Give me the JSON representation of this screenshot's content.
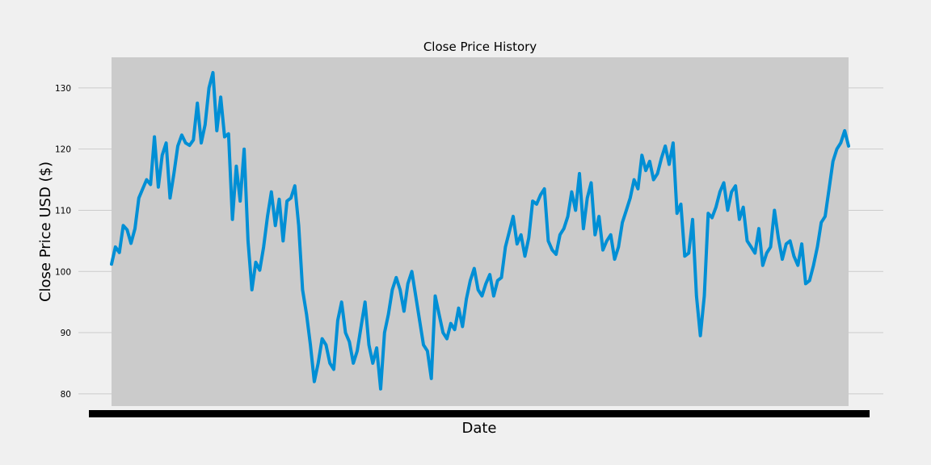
{
  "chart_data": {
    "type": "line",
    "title": "Close Price History",
    "xlabel": "Date",
    "ylabel": "Close Price USD ($)",
    "ylim": [
      78,
      135
    ],
    "yticks": [
      80,
      90,
      100,
      110,
      120,
      130
    ],
    "grid": true,
    "colors": {
      "line": "#008fd5",
      "plot_bg": "#cbcbcb",
      "figure_bg": "#f0f0f0",
      "grid": "#cbcbcb"
    },
    "series": [
      {
        "values": [
          101.2,
          104.0,
          103.1,
          107.5,
          106.8,
          104.6,
          107.0,
          112.0,
          113.5,
          115.0,
          114.2,
          122.0,
          113.8,
          119.0,
          121.0,
          112.0,
          116.0,
          120.5,
          122.3,
          121.0,
          120.6,
          121.5,
          127.5,
          121.0,
          124.0,
          130.0,
          132.5,
          123.0,
          128.5,
          122.0,
          122.5,
          108.5,
          117.2,
          111.5,
          120.0,
          105.0,
          97.0,
          101.5,
          100.2,
          104.0,
          109.0,
          113.0,
          107.5,
          111.8,
          105.0,
          111.5,
          112.0,
          114.0,
          107.5,
          97.0,
          93.0,
          88.0,
          82.0,
          85.0,
          89.0,
          88.0,
          85.0,
          84.0,
          92.0,
          95.0,
          90.0,
          88.5,
          85.0,
          87.0,
          91.0,
          95.0,
          88.0,
          85.0,
          87.5,
          80.8,
          90.0,
          93.0,
          97.0,
          99.0,
          97.0,
          93.5,
          98.0,
          100.0,
          96.0,
          92.0,
          88.0,
          87.0,
          82.5,
          96.0,
          93.0,
          90.0,
          89.0,
          91.5,
          90.5,
          94.0,
          91.0,
          95.5,
          98.5,
          100.5,
          97.0,
          96.0,
          98.0,
          99.5,
          96.0,
          98.5,
          99.0,
          104.0,
          106.5,
          109.0,
          104.5,
          106.0,
          102.5,
          105.5,
          111.5,
          111.0,
          112.5,
          113.5,
          105.0,
          103.5,
          102.8,
          106.0,
          107.0,
          109.0,
          113.0,
          110.0,
          116.0,
          107.0,
          112.0,
          114.5,
          106.0,
          109.0,
          103.5,
          105.0,
          106.0,
          102.0,
          104.0,
          108.0,
          110.0,
          112.0,
          115.0,
          113.5,
          119.0,
          116.5,
          118.0,
          115.0,
          116.0,
          118.5,
          120.5,
          117.5,
          121.0,
          109.5,
          111.0,
          102.5,
          103.0,
          108.5,
          96.0,
          89.5,
          96.0,
          109.5,
          108.8,
          110.5,
          113.0,
          114.5,
          110.0,
          113.0,
          114.0,
          108.5,
          110.5,
          105.0,
          104.0,
          103.0,
          107.0,
          101.0,
          103.0,
          104.0,
          110.0,
          105.5,
          102.0,
          104.5,
          105.0,
          102.5,
          101.0,
          104.5,
          98.0,
          98.5,
          101.0,
          104.0,
          108.0,
          109.0,
          113.5,
          118.0,
          120.0,
          121.0,
          123.0,
          120.5
        ]
      }
    ]
  }
}
